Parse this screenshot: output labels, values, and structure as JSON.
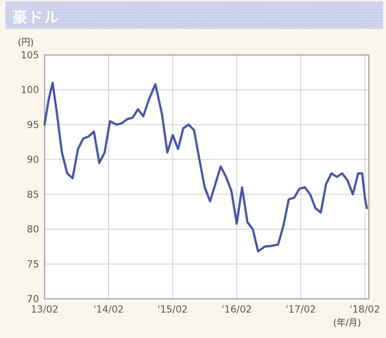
{
  "header": {
    "title": "豪ドル"
  },
  "chart_data": {
    "type": "line",
    "title": "豪ドル",
    "ylabel": "(円)",
    "xlabel": "(年/月)",
    "ylim": [
      70,
      105
    ],
    "yticks": [
      70,
      75,
      80,
      85,
      90,
      95,
      100,
      105
    ],
    "xtick_labels": [
      "13/02",
      "'14/02",
      "'15/02",
      "'16/02",
      "'17/02",
      "'18/02"
    ],
    "grid": true,
    "series": [
      {
        "color": "#4455a6",
        "points": [
          [
            0.0,
            95.0
          ],
          [
            0.3,
            98.5
          ],
          [
            0.6,
            101.0
          ],
          [
            0.9,
            97.0
          ],
          [
            1.3,
            91.0
          ],
          [
            1.7,
            88.0
          ],
          [
            2.1,
            87.3
          ],
          [
            2.5,
            91.5
          ],
          [
            2.9,
            93.0
          ],
          [
            3.3,
            93.3
          ],
          [
            3.7,
            94.0
          ],
          [
            4.1,
            89.5
          ],
          [
            4.5,
            91.0
          ],
          [
            4.9,
            95.5
          ],
          [
            5.4,
            95.0
          ],
          [
            5.8,
            95.2
          ],
          [
            6.2,
            95.8
          ],
          [
            6.6,
            96.0
          ],
          [
            7.0,
            97.2
          ],
          [
            7.4,
            96.2
          ],
          [
            7.8,
            98.5
          ],
          [
            8.3,
            100.8
          ],
          [
            8.8,
            96.5
          ],
          [
            9.2,
            91.0
          ],
          [
            9.6,
            93.5
          ],
          [
            10.0,
            91.5
          ],
          [
            10.4,
            94.5
          ],
          [
            10.8,
            95.0
          ],
          [
            11.2,
            94.2
          ],
          [
            11.6,
            90.0
          ],
          [
            12.0,
            86.0
          ],
          [
            12.4,
            84.0
          ],
          [
            12.8,
            86.5
          ],
          [
            13.2,
            89.0
          ],
          [
            13.6,
            87.5
          ],
          [
            14.0,
            85.5
          ],
          [
            14.4,
            80.8
          ],
          [
            14.8,
            86.0
          ],
          [
            15.2,
            81.0
          ],
          [
            15.6,
            80.0
          ],
          [
            16.0,
            76.8
          ],
          [
            16.5,
            77.5
          ],
          [
            17.0,
            77.6
          ],
          [
            17.5,
            77.8
          ],
          [
            17.9,
            80.5
          ],
          [
            18.3,
            84.3
          ],
          [
            18.7,
            84.5
          ],
          [
            19.1,
            85.8
          ],
          [
            19.5,
            86.0
          ],
          [
            19.9,
            85.0
          ],
          [
            20.3,
            83.0
          ],
          [
            20.7,
            82.4
          ],
          [
            21.1,
            86.5
          ],
          [
            21.5,
            88.0
          ],
          [
            21.9,
            87.5
          ],
          [
            22.3,
            88.0
          ],
          [
            22.7,
            87.0
          ],
          [
            23.1,
            85.0
          ],
          [
            23.5,
            88.0
          ],
          [
            23.8,
            88.0
          ],
          [
            24.0,
            84.5
          ],
          [
            24.15,
            83.0
          ]
        ]
      }
    ],
    "x_domain": [
      0,
      24.3
    ],
    "xtick_positions": [
      0,
      4.8,
      9.6,
      14.4,
      19.2,
      24.0
    ]
  }
}
